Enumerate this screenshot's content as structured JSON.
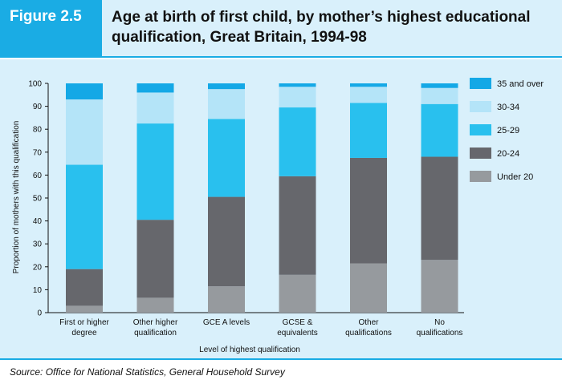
{
  "header": {
    "figure_label": "Figure 2.5",
    "title_line1": "Age at birth of first child, by mother’s highest educational",
    "title_line2": "qualification, Great Britain, 1994-98"
  },
  "source": "Source: Office for National Statistics, General Household Survey",
  "colors": {
    "under_20": "#969a9e",
    "20_24": "#66676c",
    "25_29": "#29c0ee",
    "30_34": "#b4e4f8",
    "35_over": "#14a8e6",
    "panel": "#d9f0fb",
    "accent": "#1aace4"
  },
  "chart_data": {
    "type": "bar",
    "stacked": true,
    "title": "Age at birth of first child, by mother’s highest educational qualification, Great Britain, 1994-98",
    "xlabel": "Level of highest qualification",
    "ylabel": "Proportion of mothers with this qualification",
    "ylim": [
      0,
      100
    ],
    "yticks": [
      0,
      10,
      20,
      30,
      40,
      50,
      60,
      70,
      80,
      90,
      100
    ],
    "categories": [
      [
        "First or higher",
        "degree"
      ],
      [
        "Other higher",
        "qualification"
      ],
      [
        "GCE A levels"
      ],
      [
        "GCSE &",
        "equivalents"
      ],
      [
        "Other",
        "qualifications"
      ],
      [
        "No",
        "qualifications"
      ]
    ],
    "series": [
      {
        "name": "Under 20",
        "values": [
          3,
          6.5,
          11.5,
          16.5,
          21.5,
          23
        ]
      },
      {
        "name": "20-24",
        "values": [
          16,
          34,
          39,
          43,
          46,
          45
        ]
      },
      {
        "name": "25-29",
        "values": [
          45.5,
          42,
          34,
          30,
          24,
          23
        ]
      },
      {
        "name": "30-34",
        "values": [
          28.5,
          13.5,
          13,
          9,
          7,
          7
        ]
      },
      {
        "name": "35 and over",
        "values": [
          7,
          4,
          2.5,
          1.5,
          1.5,
          2
        ]
      }
    ],
    "legend_order": [
      "35 and over",
      "30-34",
      "25-29",
      "20-24",
      "Under 20"
    ],
    "legend_position": "right",
    "grid": false
  }
}
